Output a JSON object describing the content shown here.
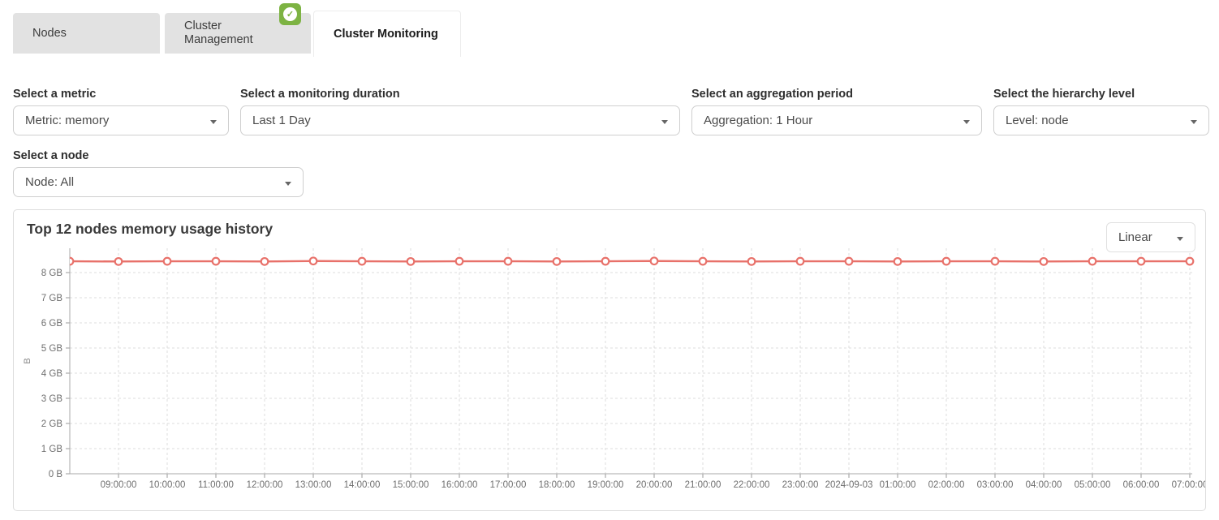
{
  "tabs": [
    {
      "label": "Nodes",
      "active": false
    },
    {
      "label": "Cluster Management",
      "active": false,
      "badge": "check"
    },
    {
      "label": "Cluster Monitoring",
      "active": true
    }
  ],
  "badge": {
    "icon": "check-icon",
    "color": "#7db343",
    "glyph": "✓"
  },
  "filters": [
    {
      "label": "Select a metric",
      "value": "Metric: memory"
    },
    {
      "label": "Select a monitoring duration",
      "value": "Last 1 Day"
    },
    {
      "label": "Select an aggregation period",
      "value": "Aggregation: 1 Hour"
    },
    {
      "label": "Select the hierarchy level",
      "value": "Level: node"
    },
    {
      "label": "Select a node",
      "value": "Node: All"
    }
  ],
  "panel": {
    "title": "Top 12 nodes memory usage history",
    "scale_selected": "Linear"
  },
  "colors": {
    "line": "#e8716a",
    "grid": "#dcdcdc",
    "axis": "#aaaaaa",
    "tick": "#999999",
    "tick_text": "#6e6e6e",
    "tab_bg": "#e2e2e2",
    "badge_green": "#7db343"
  },
  "chart_data": {
    "type": "line",
    "title": "Top 12 nodes memory usage history",
    "ylabel": "B",
    "y_unit": "GB",
    "ylim_gb": [
      0,
      9
    ],
    "grid": "dashed",
    "legend": "none",
    "marker": "open-circle",
    "y_ticks": [
      "0 B",
      "1 GB",
      "2 GB",
      "3 GB",
      "4 GB",
      "5 GB",
      "6 GB",
      "7 GB",
      "8 GB"
    ],
    "x_ticks": [
      "09:00:00",
      "10:00:00",
      "11:00:00",
      "12:00:00",
      "13:00:00",
      "14:00:00",
      "15:00:00",
      "16:00:00",
      "17:00:00",
      "18:00:00",
      "19:00:00",
      "20:00:00",
      "21:00:00",
      "22:00:00",
      "23:00:00",
      "2024-09-03",
      "01:00:00",
      "02:00:00",
      "03:00:00",
      "04:00:00",
      "05:00:00",
      "06:00:00",
      "07:00:00"
    ],
    "note": "12 node series overlap as one nearly flat line at ~8.45 GB; first point (08:00:00) sits on the left axis edge",
    "series": [
      {
        "name": "top-12-nodes-memory",
        "color": "#e8716a",
        "values_gb": [
          8.45,
          8.44,
          8.45,
          8.45,
          8.44,
          8.46,
          8.45,
          8.44,
          8.45,
          8.45,
          8.44,
          8.45,
          8.46,
          8.45,
          8.44,
          8.45,
          8.45,
          8.44,
          8.45,
          8.45,
          8.44,
          8.45,
          8.45,
          8.45
        ]
      }
    ]
  }
}
